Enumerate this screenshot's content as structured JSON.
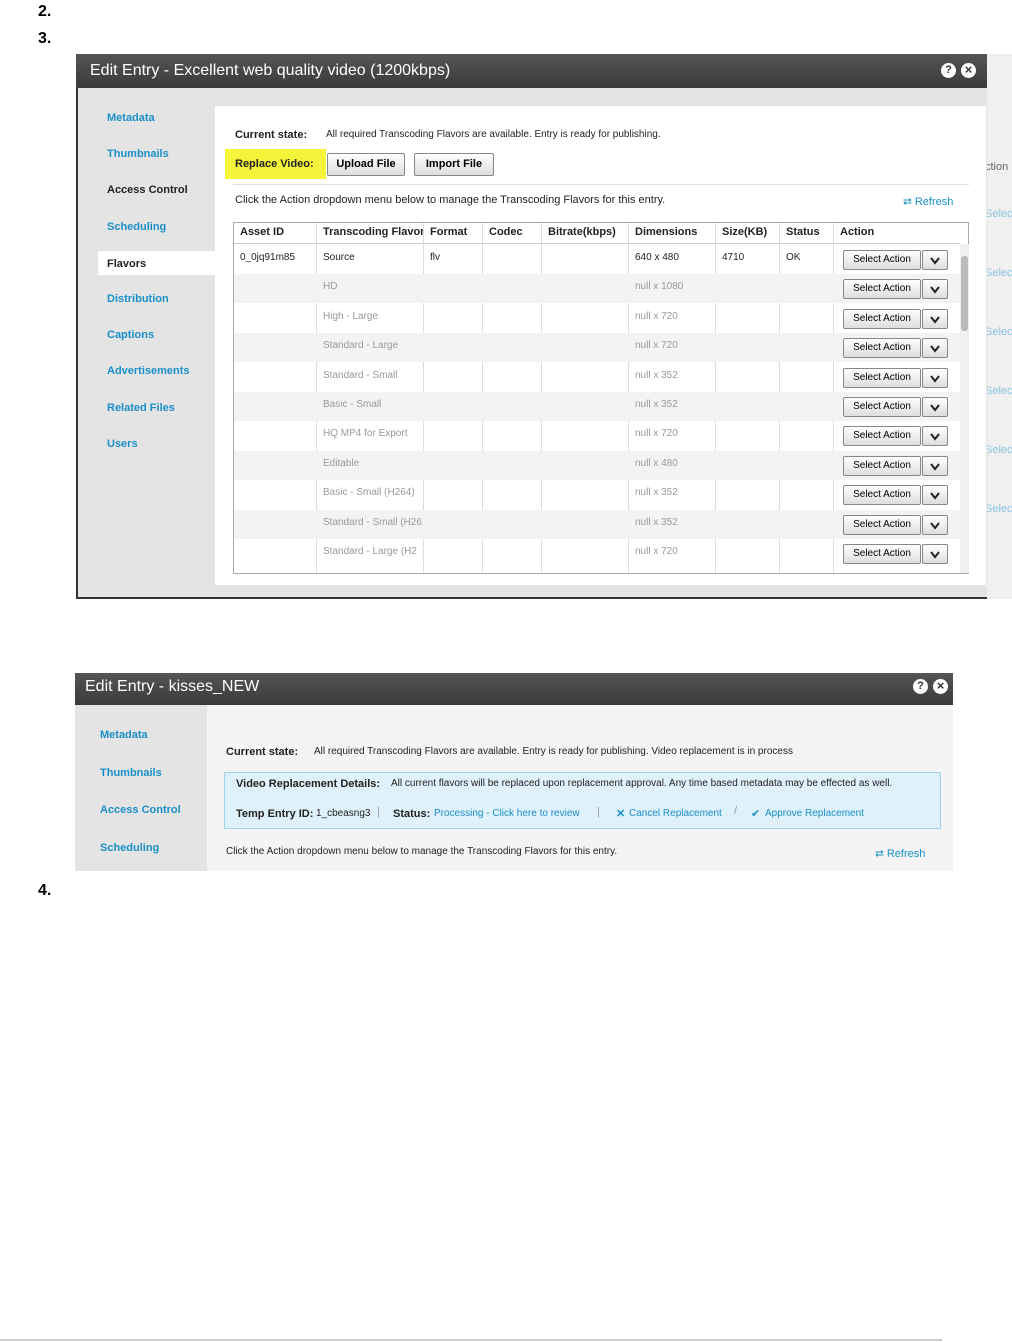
{
  "steps": [
    "2.",
    "3.",
    "4."
  ],
  "shot1": {
    "title": "Edit Entry - Excellent web quality video (1200kbps)",
    "help_icon": "?",
    "close_icon": "×",
    "nav": [
      "Metadata",
      "Thumbnails",
      "Access Control",
      "Scheduling",
      "Flavors",
      "Distribution",
      "Captions",
      "Advertisements",
      "Related Files",
      "Users"
    ],
    "current_state_label": "Current state:",
    "current_state_text": "All required Transcoding Flavors are available. Entry is ready for publishing.",
    "replace_label": "Replace Video:",
    "buttons": [
      "Upload File",
      "Import File"
    ],
    "instruction": "Click the Action dropdown menu below to manage the Transcoding Flavors for this entry.",
    "refresh": "Refresh",
    "table": {
      "headers": [
        "Asset ID",
        "Transcoding Flavor",
        "Format",
        "Codec",
        "Bitrate(kbps)",
        "Dimensions",
        "Size(KB)",
        "Status",
        "Action"
      ],
      "rows": [
        [
          "0_0jq91m85",
          "Source",
          "flv",
          null,
          null,
          "640 x 480",
          "4710",
          "OK",
          "Select Action"
        ],
        [
          null,
          "HD",
          null,
          null,
          null,
          "null x 1080",
          null,
          null,
          "Select Action"
        ],
        [
          null,
          "High - Large",
          null,
          null,
          null,
          "null x 720",
          null,
          null,
          "Select Action"
        ],
        [
          null,
          "Standard - Large",
          null,
          null,
          null,
          "null x 720",
          null,
          null,
          "Select Action"
        ],
        [
          null,
          "Standard - Small",
          null,
          null,
          null,
          "null x 352",
          null,
          null,
          "Select Action"
        ],
        [
          null,
          "Basic - Small",
          null,
          null,
          null,
          "null x 352",
          null,
          null,
          "Select Action"
        ],
        [
          null,
          "HQ MP4 for Export",
          null,
          null,
          null,
          "null x 720",
          null,
          null,
          "Select Action"
        ],
        [
          null,
          "Editable",
          null,
          null,
          null,
          "null x 480",
          null,
          null,
          "Select Action"
        ],
        [
          null,
          "Basic - Small (H264)",
          null,
          null,
          null,
          "null x 352",
          null,
          null,
          "Select Action"
        ],
        [
          null,
          "Standard - Small (H26",
          null,
          null,
          null,
          "null x 352",
          null,
          null,
          "Select Action"
        ],
        [
          null,
          "Standard - Large (H2",
          null,
          null,
          null,
          "null x 720",
          null,
          null,
          "Select Action"
        ]
      ]
    },
    "background_labels": [
      "ction",
      "Selec",
      "Selec",
      "Selec",
      "Selec",
      "Selec",
      "Selec"
    ]
  },
  "shot2": {
    "title": "Edit Entry - kisses_NEW",
    "help_icon": "?",
    "close_icon": "×",
    "nav": [
      "Metadata",
      "Thumbnails",
      "Access Control",
      "Scheduling"
    ],
    "current_state_label": "Current state:",
    "current_state_text": "All required Transcoding Flavors are available. Entry is ready for publishing. Video replacement is in process",
    "details_label": "Video Replacement Details:",
    "details_text": "All current flavors will be replaced upon replacement approval. Any time based metadata may be effected as well.",
    "temp_id_label": "Temp Entry ID:",
    "temp_id_value": "1_cbeasng3",
    "separator1": "|",
    "status_label": "Status:",
    "status_value": "Processing - Click here to review",
    "separator2": "|",
    "cancel": "Cancel Replacement",
    "separator3": "/",
    "approve": "Approve Replacement",
    "instruction": "Click the Action dropdown menu below to manage the Transcoding Flavors for this entry.",
    "refresh": "Refresh"
  }
}
